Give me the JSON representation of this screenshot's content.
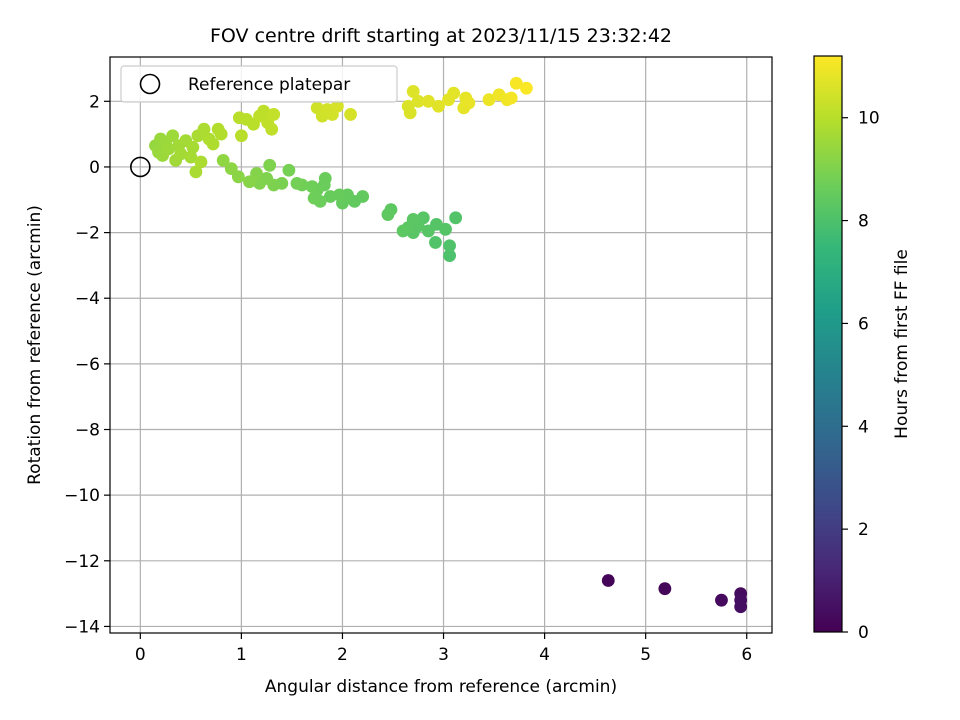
{
  "chart_data": {
    "type": "scatter",
    "title": "FOV centre drift starting at 2023/11/15 23:32:42",
    "xlabel": "Angular distance from reference (arcmin)",
    "ylabel": "Rotation from reference (arcmin)",
    "xlim": [
      -0.3,
      6.25
    ],
    "ylim": [
      -14.2,
      3.35
    ],
    "xticks": [
      0,
      1,
      2,
      3,
      4,
      5,
      6
    ],
    "yticks": [
      -14,
      -12,
      -10,
      -8,
      -6,
      -4,
      -2,
      0,
      2
    ],
    "grid": true,
    "legend": {
      "placement": "top-left",
      "entries": [
        {
          "label": "Reference platepar"
        }
      ]
    },
    "reference_point": {
      "x": 0,
      "y": 0
    },
    "colorbar": {
      "label": "Hours from first FF file",
      "range": [
        0,
        11.2
      ],
      "ticks": [
        0,
        2,
        4,
        6,
        8,
        10
      ],
      "colormap": [
        "#440154",
        "#482878",
        "#3e4a89",
        "#31688e",
        "#26828e",
        "#1f9e89",
        "#35b779",
        "#6ece58",
        "#b5de2b",
        "#fde725"
      ]
    },
    "points": [
      {
        "x": 4.63,
        "y": -12.6,
        "c": 0.1
      },
      {
        "x": 5.19,
        "y": -12.85,
        "c": 0.2
      },
      {
        "x": 5.75,
        "y": -13.2,
        "c": 0.3
      },
      {
        "x": 5.94,
        "y": -13.0,
        "c": 0.35
      },
      {
        "x": 5.94,
        "y": -13.2,
        "c": 0.4
      },
      {
        "x": 5.94,
        "y": -13.4,
        "c": 0.45
      },
      {
        "x": 3.06,
        "y": -2.7,
        "c": 8.0
      },
      {
        "x": 3.06,
        "y": -2.4,
        "c": 8.05
      },
      {
        "x": 2.92,
        "y": -2.3,
        "c": 8.1
      },
      {
        "x": 3.12,
        "y": -1.55,
        "c": 8.1
      },
      {
        "x": 3.02,
        "y": -1.9,
        "c": 8.15
      },
      {
        "x": 2.93,
        "y": -1.75,
        "c": 8.15
      },
      {
        "x": 2.85,
        "y": -1.95,
        "c": 8.2
      },
      {
        "x": 2.8,
        "y": -1.55,
        "c": 8.2
      },
      {
        "x": 2.75,
        "y": -1.8,
        "c": 8.25
      },
      {
        "x": 2.7,
        "y": -2.0,
        "c": 8.25
      },
      {
        "x": 2.7,
        "y": -1.6,
        "c": 8.3
      },
      {
        "x": 2.65,
        "y": -1.85,
        "c": 8.3
      },
      {
        "x": 2.6,
        "y": -1.95,
        "c": 8.35
      },
      {
        "x": 2.48,
        "y": -1.3,
        "c": 8.35
      },
      {
        "x": 2.45,
        "y": -1.45,
        "c": 8.4
      },
      {
        "x": 2.2,
        "y": -0.9,
        "c": 8.45
      },
      {
        "x": 2.12,
        "y": -1.05,
        "c": 8.45
      },
      {
        "x": 2.05,
        "y": -0.85,
        "c": 8.5
      },
      {
        "x": 2.0,
        "y": -1.1,
        "c": 8.5
      },
      {
        "x": 1.97,
        "y": -0.85,
        "c": 8.55
      },
      {
        "x": 1.88,
        "y": -0.9,
        "c": 8.55
      },
      {
        "x": 1.83,
        "y": -0.35,
        "c": 8.6
      },
      {
        "x": 1.82,
        "y": -0.55,
        "c": 8.6
      },
      {
        "x": 1.78,
        "y": -1.05,
        "c": 8.65
      },
      {
        "x": 1.75,
        "y": -0.7,
        "c": 8.65
      },
      {
        "x": 1.72,
        "y": -0.95,
        "c": 8.7
      },
      {
        "x": 1.7,
        "y": -0.6,
        "c": 8.7
      },
      {
        "x": 1.6,
        "y": -0.55,
        "c": 8.75
      },
      {
        "x": 1.55,
        "y": -0.5,
        "c": 8.8
      },
      {
        "x": 1.47,
        "y": -0.1,
        "c": 8.85
      },
      {
        "x": 1.4,
        "y": -0.5,
        "c": 8.9
      },
      {
        "x": 1.32,
        "y": -0.55,
        "c": 8.95
      },
      {
        "x": 1.28,
        "y": 0.05,
        "c": 9.0
      },
      {
        "x": 1.25,
        "y": -0.35,
        "c": 9.0
      },
      {
        "x": 1.18,
        "y": -0.5,
        "c": 9.05
      },
      {
        "x": 1.15,
        "y": -0.2,
        "c": 9.1
      },
      {
        "x": 1.08,
        "y": -0.45,
        "c": 9.15
      },
      {
        "x": 0.97,
        "y": -0.3,
        "c": 9.2
      },
      {
        "x": 0.9,
        "y": -0.05,
        "c": 9.25
      },
      {
        "x": 0.82,
        "y": 0.2,
        "c": 9.3
      },
      {
        "x": 0.15,
        "y": 0.65,
        "c": 9.4
      },
      {
        "x": 0.18,
        "y": 0.45,
        "c": 9.45
      },
      {
        "x": 0.2,
        "y": 0.85,
        "c": 9.45
      },
      {
        "x": 0.22,
        "y": 0.35,
        "c": 9.5
      },
      {
        "x": 0.25,
        "y": 0.75,
        "c": 9.5
      },
      {
        "x": 0.28,
        "y": 0.55,
        "c": 9.55
      },
      {
        "x": 0.32,
        "y": 0.95,
        "c": 9.55
      },
      {
        "x": 0.35,
        "y": 0.2,
        "c": 9.6
      },
      {
        "x": 0.38,
        "y": 0.65,
        "c": 9.6
      },
      {
        "x": 0.4,
        "y": 0.4,
        "c": 9.65
      },
      {
        "x": 0.45,
        "y": 0.8,
        "c": 9.65
      },
      {
        "x": 0.5,
        "y": 0.3,
        "c": 9.7
      },
      {
        "x": 0.52,
        "y": 0.6,
        "c": 9.7
      },
      {
        "x": 0.55,
        "y": -0.15,
        "c": 9.75
      },
      {
        "x": 0.57,
        "y": 0.95,
        "c": 9.75
      },
      {
        "x": 0.6,
        "y": 0.15,
        "c": 9.8
      },
      {
        "x": 0.63,
        "y": 1.15,
        "c": 9.8
      },
      {
        "x": 0.68,
        "y": 0.85,
        "c": 9.85
      },
      {
        "x": 0.72,
        "y": 0.7,
        "c": 9.85
      },
      {
        "x": 0.77,
        "y": 1.15,
        "c": 9.9
      },
      {
        "x": 0.8,
        "y": 1.0,
        "c": 9.9
      },
      {
        "x": 1.0,
        "y": 0.95,
        "c": 10.0
      },
      {
        "x": 0.98,
        "y": 1.5,
        "c": 10.0
      },
      {
        "x": 1.05,
        "y": 1.45,
        "c": 10.05
      },
      {
        "x": 1.12,
        "y": 1.3,
        "c": 10.05
      },
      {
        "x": 1.18,
        "y": 1.55,
        "c": 10.1
      },
      {
        "x": 1.22,
        "y": 1.7,
        "c": 10.1
      },
      {
        "x": 1.26,
        "y": 1.35,
        "c": 10.15
      },
      {
        "x": 1.3,
        "y": 1.15,
        "c": 10.15
      },
      {
        "x": 1.32,
        "y": 1.6,
        "c": 10.2
      },
      {
        "x": 1.75,
        "y": 1.8,
        "c": 10.4
      },
      {
        "x": 1.8,
        "y": 1.55,
        "c": 10.4
      },
      {
        "x": 1.85,
        "y": 1.75,
        "c": 10.45
      },
      {
        "x": 1.9,
        "y": 1.6,
        "c": 10.45
      },
      {
        "x": 1.95,
        "y": 1.85,
        "c": 10.5
      },
      {
        "x": 2.08,
        "y": 1.6,
        "c": 10.5
      },
      {
        "x": 2.65,
        "y": 1.85,
        "c": 10.6
      },
      {
        "x": 2.67,
        "y": 1.65,
        "c": 10.6
      },
      {
        "x": 2.7,
        "y": 2.3,
        "c": 10.65
      },
      {
        "x": 2.75,
        "y": 2.0,
        "c": 10.65
      },
      {
        "x": 2.85,
        "y": 2.0,
        "c": 10.7
      },
      {
        "x": 2.95,
        "y": 1.85,
        "c": 10.7
      },
      {
        "x": 3.05,
        "y": 2.05,
        "c": 10.75
      },
      {
        "x": 3.1,
        "y": 2.25,
        "c": 10.75
      },
      {
        "x": 3.2,
        "y": 1.8,
        "c": 10.8
      },
      {
        "x": 3.22,
        "y": 2.1,
        "c": 10.8
      },
      {
        "x": 3.25,
        "y": 1.95,
        "c": 10.85
      },
      {
        "x": 3.45,
        "y": 2.05,
        "c": 10.9
      },
      {
        "x": 3.55,
        "y": 2.2,
        "c": 10.95
      },
      {
        "x": 3.63,
        "y": 2.05,
        "c": 11.0
      },
      {
        "x": 3.67,
        "y": 2.1,
        "c": 11.05
      },
      {
        "x": 3.72,
        "y": 2.55,
        "c": 11.1
      },
      {
        "x": 3.82,
        "y": 2.4,
        "c": 11.15
      }
    ]
  }
}
